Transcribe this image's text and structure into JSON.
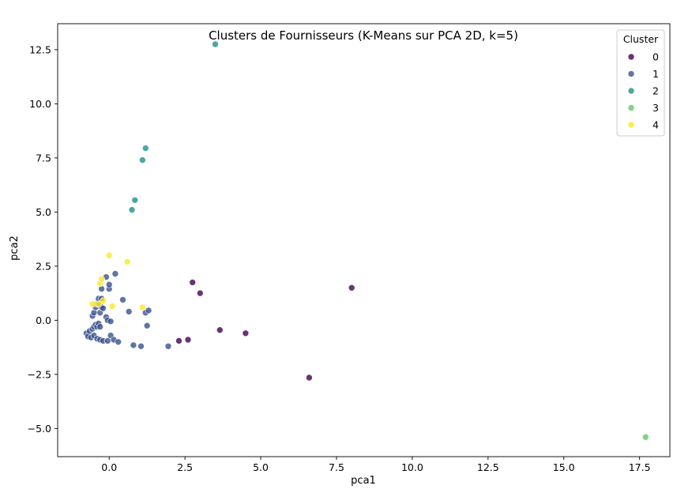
{
  "chart_data": {
    "type": "scatter",
    "title": "Clusters de Fournisseurs (K-Means sur PCA 2D, k=5)",
    "xlabel": "pca1",
    "ylabel": "pca2",
    "xlim": [
      -1.7,
      18.5
    ],
    "ylim": [
      -6.3,
      13.7
    ],
    "xticks": [
      "0.0",
      "2.5",
      "5.0",
      "7.5",
      "10.0",
      "12.5",
      "15.0",
      "17.5"
    ],
    "xtick_values": [
      0,
      2.5,
      5,
      7.5,
      10,
      12.5,
      15,
      17.5
    ],
    "yticks": [
      "−5.0",
      "−2.5",
      "0.0",
      "2.5",
      "5.0",
      "7.5",
      "10.0",
      "12.5"
    ],
    "ytick_values": [
      -5,
      -2.5,
      0,
      2.5,
      5,
      7.5,
      10,
      12.5
    ],
    "grid": false,
    "legend": {
      "title": "Cluster",
      "placement": "top-right"
    },
    "series": [
      {
        "name": "0",
        "color": "#440154",
        "points": [
          [
            2.75,
            1.75
          ],
          [
            3.0,
            1.25
          ],
          [
            8.0,
            1.5
          ],
          [
            2.3,
            -0.95
          ],
          [
            2.6,
            -0.9
          ],
          [
            3.65,
            -0.45
          ],
          [
            4.5,
            -0.6
          ],
          [
            6.6,
            -2.65
          ]
        ]
      },
      {
        "name": "1",
        "color": "#3b528b",
        "points": [
          [
            -0.75,
            -0.6
          ],
          [
            -0.7,
            -0.75
          ],
          [
            -0.65,
            -0.5
          ],
          [
            -0.6,
            -0.8
          ],
          [
            -0.55,
            -0.4
          ],
          [
            -0.5,
            -0.3
          ],
          [
            -0.5,
            -0.7
          ],
          [
            -0.45,
            -0.2
          ],
          [
            -0.4,
            -0.85
          ],
          [
            -0.4,
            -0.3
          ],
          [
            -0.35,
            -0.15
          ],
          [
            -0.3,
            -0.3
          ],
          [
            -0.3,
            -0.9
          ],
          [
            -0.55,
            0.2
          ],
          [
            -0.5,
            0.35
          ],
          [
            -0.45,
            0.6
          ],
          [
            -0.4,
            0.75
          ],
          [
            -0.35,
            1.0
          ],
          [
            -0.3,
            0.7
          ],
          [
            -0.3,
            0.35
          ],
          [
            -0.25,
            1.0
          ],
          [
            -0.25,
            0.6
          ],
          [
            -0.2,
            0.55
          ],
          [
            -0.25,
            1.45
          ],
          [
            -0.1,
            0.15
          ],
          [
            -0.05,
            0.0
          ],
          [
            -0.1,
            2.0
          ],
          [
            0.0,
            1.45
          ],
          [
            0.0,
            1.65
          ],
          [
            0.2,
            2.15
          ],
          [
            0.05,
            -0.05
          ],
          [
            -0.2,
            -0.95
          ],
          [
            -0.05,
            -0.95
          ],
          [
            0.05,
            -0.7
          ],
          [
            0.15,
            -0.9
          ],
          [
            0.3,
            -1.0
          ],
          [
            0.45,
            0.95
          ],
          [
            0.65,
            0.4
          ],
          [
            0.8,
            -1.15
          ],
          [
            1.05,
            -1.2
          ],
          [
            1.2,
            0.35
          ],
          [
            1.3,
            0.45
          ],
          [
            1.25,
            -0.25
          ],
          [
            1.95,
            -1.2
          ]
        ]
      },
      {
        "name": "2",
        "color": "#21918c",
        "points": [
          [
            3.5,
            12.75
          ],
          [
            1.2,
            7.95
          ],
          [
            1.1,
            7.4
          ],
          [
            0.85,
            5.55
          ],
          [
            0.75,
            5.1
          ]
        ]
      },
      {
        "name": "3",
        "color": "#5ec962",
        "points": [
          [
            17.7,
            -5.4
          ]
        ]
      },
      {
        "name": "4",
        "color": "#fde725",
        "points": [
          [
            0.0,
            3.0
          ],
          [
            0.6,
            2.7
          ],
          [
            -0.3,
            1.7
          ],
          [
            -0.25,
            1.9
          ],
          [
            -0.2,
            0.9
          ],
          [
            -0.35,
            0.75
          ],
          [
            -0.55,
            0.75
          ],
          [
            0.1,
            0.65
          ],
          [
            1.1,
            0.6
          ]
        ]
      }
    ]
  }
}
